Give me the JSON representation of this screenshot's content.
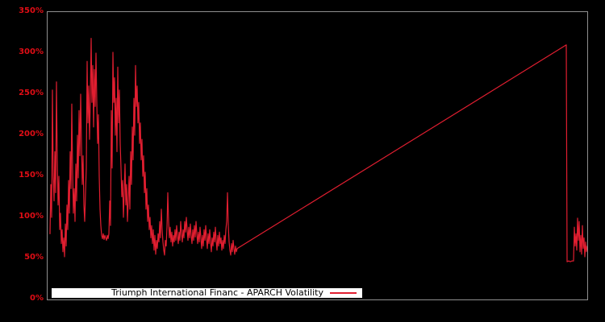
{
  "chart": {
    "background": "#000000",
    "plot_border_color": "#909090",
    "line_color": "#e11e30",
    "tick_label_color": "#e00d15",
    "legend": {
      "label": "Triumph International Financ - APARCH Volatility",
      "background": "#ffffff",
      "text_color": "#000000",
      "sample_line_color": "#e11e30"
    }
  },
  "chart_data": {
    "type": "line",
    "title": "",
    "xlabel": "",
    "ylabel": "",
    "grid": false,
    "legend_position": "bottom-left",
    "ylim": [
      0,
      350
    ],
    "yticks": [
      {
        "label": "0%",
        "value": 0
      },
      {
        "label": "50%",
        "value": 50
      },
      {
        "label": "100%",
        "value": 100
      },
      {
        "label": "150%",
        "value": 150
      },
      {
        "label": "200%",
        "value": 200
      },
      {
        "label": "250%",
        "value": 250
      },
      {
        "label": "300%",
        "value": 300
      },
      {
        "label": "350%",
        "value": 350
      }
    ],
    "xticks": [],
    "x_unit": "sample-index",
    "series": [
      {
        "name": "Triumph International Financ - APARCH Volatility",
        "color": "#e11e30",
        "unit": "percent",
        "points": [
          [
            0,
            80
          ],
          [
            1,
            140
          ],
          [
            2,
            100
          ],
          [
            3,
            255
          ],
          [
            4,
            150
          ],
          [
            5,
            120
          ],
          [
            6,
            180
          ],
          [
            7,
            130
          ],
          [
            8,
            265
          ],
          [
            9,
            170
          ],
          [
            10,
            115
          ],
          [
            11,
            150
          ],
          [
            12,
            85
          ],
          [
            13,
            105
          ],
          [
            14,
            68
          ],
          [
            15,
            85
          ],
          [
            16,
            58
          ],
          [
            17,
            75
          ],
          [
            18,
            52
          ],
          [
            19,
            92
          ],
          [
            20,
            65
          ],
          [
            21,
            115
          ],
          [
            22,
            85
          ],
          [
            23,
            145
          ],
          [
            24,
            105
          ],
          [
            25,
            180
          ],
          [
            26,
            135
          ],
          [
            27,
            238
          ],
          [
            28,
            155
          ],
          [
            29,
            105
          ],
          [
            30,
            135
          ],
          [
            31,
            95
          ],
          [
            32,
            165
          ],
          [
            33,
            120
          ],
          [
            34,
            200
          ],
          [
            35,
            148
          ],
          [
            36,
            230
          ],
          [
            37,
            175
          ],
          [
            38,
            250
          ],
          [
            39,
            190
          ],
          [
            40,
            140
          ],
          [
            41,
            175
          ],
          [
            42,
            115
          ],
          [
            43,
            95
          ],
          [
            44,
            130
          ],
          [
            45,
            160
          ],
          [
            46,
            290
          ],
          [
            47,
            215
          ],
          [
            48,
            260
          ],
          [
            49,
            195
          ],
          [
            50,
            245
          ],
          [
            51,
            318
          ],
          [
            52,
            240
          ],
          [
            53,
            285
          ],
          [
            54,
            210
          ],
          [
            55,
            280
          ],
          [
            56,
            235
          ],
          [
            57,
            300
          ],
          [
            58,
            240
          ],
          [
            59,
            190
          ],
          [
            60,
            225
          ],
          [
            61,
            150
          ],
          [
            62,
            110
          ],
          [
            63,
            90
          ],
          [
            64,
            78
          ],
          [
            65,
            74
          ],
          [
            66,
            80
          ],
          [
            67,
            73
          ],
          [
            68,
            78
          ],
          [
            69,
            75
          ],
          [
            70,
            72
          ],
          [
            71,
            78
          ],
          [
            72,
            74
          ],
          [
            73,
            80
          ],
          [
            74,
            120
          ],
          [
            75,
            90
          ],
          [
            76,
            230
          ],
          [
            77,
            160
          ],
          [
            78,
            301
          ],
          [
            79,
            240
          ],
          [
            80,
            270
          ],
          [
            81,
            200
          ],
          [
            82,
            245
          ],
          [
            83,
            180
          ],
          [
            84,
            283
          ],
          [
            85,
            215
          ],
          [
            86,
            255
          ],
          [
            87,
            190
          ],
          [
            88,
            160
          ],
          [
            89,
            125
          ],
          [
            90,
            145
          ],
          [
            91,
            100
          ],
          [
            92,
            130
          ],
          [
            93,
            165
          ],
          [
            94,
            115
          ],
          [
            95,
            140
          ],
          [
            96,
            95
          ],
          [
            97,
            120
          ],
          [
            98,
            150
          ],
          [
            99,
            110
          ],
          [
            100,
            180
          ],
          [
            101,
            140
          ],
          [
            102,
            210
          ],
          [
            103,
            170
          ],
          [
            104,
            245
          ],
          [
            105,
            200
          ],
          [
            106,
            285
          ],
          [
            107,
            235
          ],
          [
            108,
            260
          ],
          [
            109,
            215
          ],
          [
            110,
            240
          ],
          [
            111,
            190
          ],
          [
            112,
            215
          ],
          [
            113,
            170
          ],
          [
            114,
            195
          ],
          [
            115,
            150
          ],
          [
            116,
            175
          ],
          [
            117,
            130
          ],
          [
            118,
            155
          ],
          [
            119,
            110
          ],
          [
            120,
            135
          ],
          [
            121,
            95
          ],
          [
            122,
            115
          ],
          [
            123,
            85
          ],
          [
            124,
            100
          ],
          [
            125,
            75
          ],
          [
            126,
            90
          ],
          [
            127,
            68
          ],
          [
            128,
            85
          ],
          [
            129,
            60
          ],
          [
            130,
            78
          ],
          [
            131,
            55
          ],
          [
            132,
            72
          ],
          [
            133,
            62
          ],
          [
            134,
            80
          ],
          [
            135,
            70
          ],
          [
            136,
            95
          ],
          [
            137,
            75
          ],
          [
            138,
            110
          ],
          [
            139,
            85
          ],
          [
            140,
            70
          ],
          [
            141,
            60
          ],
          [
            142,
            54
          ],
          [
            143,
            72
          ],
          [
            144,
            65
          ],
          [
            145,
            88
          ],
          [
            146,
            130
          ],
          [
            147,
            95
          ],
          [
            148,
            75
          ],
          [
            149,
            88
          ],
          [
            150,
            70
          ],
          [
            151,
            82
          ],
          [
            152,
            65
          ],
          [
            153,
            78
          ],
          [
            154,
            70
          ],
          [
            155,
            85
          ],
          [
            156,
            72
          ],
          [
            157,
            90
          ],
          [
            158,
            78
          ],
          [
            159,
            68
          ],
          [
            160,
            82
          ],
          [
            161,
            72
          ],
          [
            162,
            95
          ],
          [
            163,
            80
          ],
          [
            164,
            70
          ],
          [
            165,
            85
          ],
          [
            166,
            75
          ],
          [
            167,
            95
          ],
          [
            168,
            82
          ],
          [
            169,
            100
          ],
          [
            170,
            85
          ],
          [
            171,
            72
          ],
          [
            172,
            88
          ],
          [
            173,
            75
          ],
          [
            174,
            92
          ],
          [
            175,
            78
          ],
          [
            176,
            68
          ],
          [
            177,
            85
          ],
          [
            178,
            72
          ],
          [
            179,
            90
          ],
          [
            180,
            76
          ],
          [
            181,
            95
          ],
          [
            182,
            80
          ],
          [
            183,
            68
          ],
          [
            184,
            82
          ],
          [
            185,
            70
          ],
          [
            186,
            88
          ],
          [
            187,
            75
          ],
          [
            188,
            62
          ],
          [
            189,
            78
          ],
          [
            190,
            65
          ],
          [
            191,
            85
          ],
          [
            192,
            72
          ],
          [
            193,
            90
          ],
          [
            194,
            75
          ],
          [
            195,
            62
          ],
          [
            196,
            80
          ],
          [
            197,
            68
          ],
          [
            198,
            85
          ],
          [
            199,
            70
          ],
          [
            200,
            58
          ],
          [
            201,
            75
          ],
          [
            202,
            65
          ],
          [
            203,
            82
          ],
          [
            204,
            70
          ],
          [
            205,
            88
          ],
          [
            206,
            72
          ],
          [
            207,
            60
          ],
          [
            208,
            78
          ],
          [
            209,
            65
          ],
          [
            210,
            82
          ],
          [
            211,
            68
          ],
          [
            212,
            75
          ],
          [
            213,
            60
          ],
          [
            214,
            72
          ],
          [
            215,
            62
          ],
          [
            216,
            78
          ],
          [
            217,
            68
          ],
          [
            218,
            85
          ],
          [
            219,
            95
          ],
          [
            220,
            130
          ],
          [
            221,
            90
          ],
          [
            222,
            70
          ],
          [
            223,
            60
          ],
          [
            224,
            54
          ],
          [
            225,
            68
          ],
          [
            226,
            58
          ],
          [
            227,
            72
          ],
          [
            228,
            62
          ],
          [
            229,
            55
          ],
          [
            230,
            65
          ],
          [
            231,
            58
          ],
          [
            232,
            62
          ],
          [
            640,
            310
          ],
          [
            641,
            46
          ],
          [
            643,
            47
          ],
          [
            645,
            46
          ],
          [
            647,
            47
          ],
          [
            649,
            47
          ],
          [
            650,
            88
          ],
          [
            651,
            65
          ],
          [
            652,
            80
          ],
          [
            653,
            60
          ],
          [
            654,
            99
          ],
          [
            655,
            72
          ],
          [
            656,
            95
          ],
          [
            657,
            58
          ],
          [
            658,
            78
          ],
          [
            659,
            55
          ],
          [
            660,
            90
          ],
          [
            661,
            62
          ],
          [
            662,
            75
          ],
          [
            663,
            52
          ],
          [
            664,
            70
          ],
          [
            665,
            58
          ],
          [
            666,
            65
          ],
          [
            667,
            60
          ]
        ]
      }
    ]
  }
}
